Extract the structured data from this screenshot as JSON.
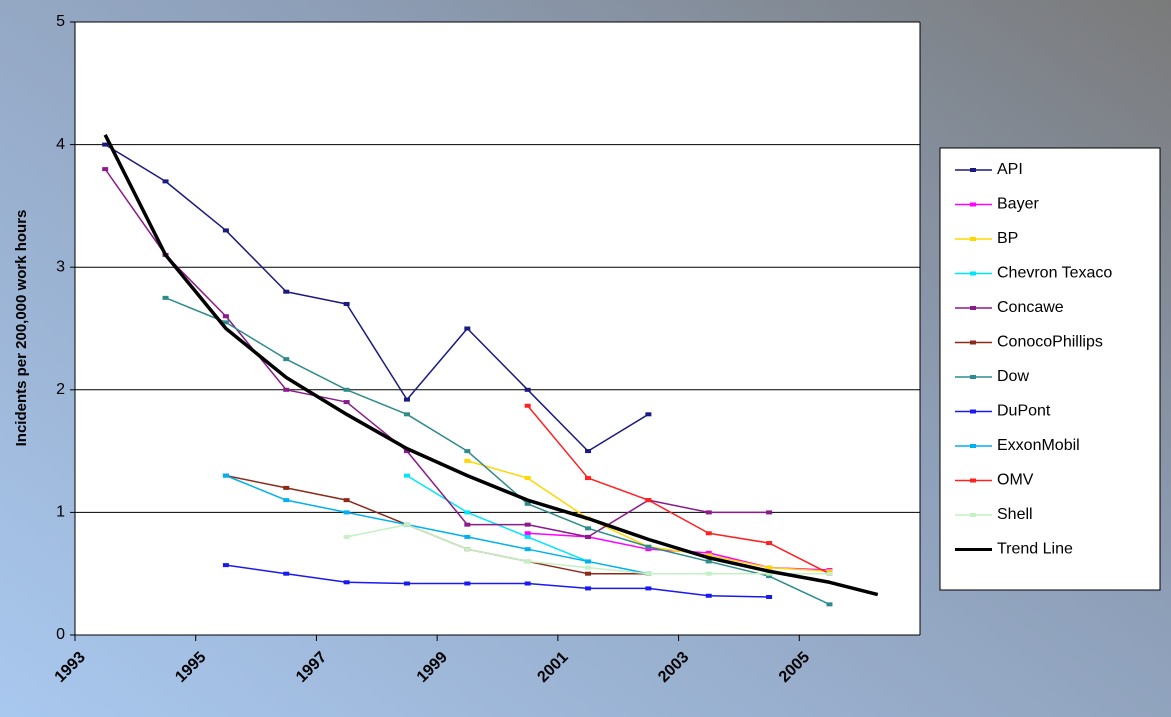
{
  "chart_data": {
    "type": "line",
    "y_label": "Incidents per 200,000 work hours",
    "x": [
      1993.5,
      1994.5,
      1995.5,
      1996.5,
      1997.5,
      1998.5,
      1999.5,
      2000.5,
      2001.5,
      2002.5,
      2003.5,
      2004.5,
      2005.5,
      2006.3
    ],
    "xlim": [
      1993,
      2007
    ],
    "xticks": [
      1993,
      1995,
      1997,
      1999,
      2001,
      2003,
      2005
    ],
    "ylim": [
      0,
      5
    ],
    "yticks": [
      0,
      1,
      2,
      3,
      4,
      5
    ],
    "grid": true,
    "legend": "right",
    "series": [
      {
        "name": "API",
        "color": "#1a1a80",
        "values": [
          4.0,
          3.7,
          3.3,
          2.8,
          2.7,
          1.92,
          2.5,
          2.0,
          1.5,
          1.8,
          null,
          null,
          null,
          null
        ]
      },
      {
        "name": "Bayer",
        "color": "#ff00ff",
        "values": [
          null,
          null,
          null,
          null,
          null,
          null,
          null,
          0.83,
          0.8,
          0.7,
          0.67,
          0.55,
          0.53,
          null
        ]
      },
      {
        "name": "BP",
        "color": "#ffd700",
        "values": [
          null,
          null,
          null,
          null,
          null,
          null,
          1.42,
          1.28,
          0.95,
          0.72,
          0.65,
          0.55,
          0.52,
          null
        ]
      },
      {
        "name": "Chevron Texaco",
        "color": "#00e5ff",
        "values": [
          null,
          null,
          null,
          null,
          null,
          1.3,
          1.0,
          0.8,
          0.6,
          null,
          null,
          null,
          null,
          null
        ]
      },
      {
        "name": "Concawe",
        "color": "#8b1a8b",
        "values": [
          3.8,
          3.1,
          2.6,
          2.0,
          1.9,
          1.5,
          0.9,
          0.9,
          0.8,
          1.1,
          1.0,
          1.0,
          null,
          null
        ]
      },
      {
        "name": "ConocoPhillips",
        "color": "#8b2a1a",
        "values": [
          null,
          null,
          1.3,
          1.2,
          1.1,
          0.9,
          0.7,
          0.6,
          0.5,
          0.5,
          null,
          null,
          null,
          null
        ]
      },
      {
        "name": "Dow",
        "color": "#2e8b8b",
        "values": [
          null,
          2.75,
          2.55,
          2.25,
          2.0,
          1.8,
          1.5,
          1.07,
          0.87,
          0.72,
          0.6,
          0.48,
          0.25,
          null
        ]
      },
      {
        "name": "DuPont",
        "color": "#1a1aee",
        "values": [
          null,
          null,
          0.57,
          0.5,
          0.43,
          0.42,
          0.42,
          0.42,
          0.38,
          0.38,
          0.32,
          0.31,
          null,
          null
        ]
      },
      {
        "name": "ExxonMobil",
        "color": "#00b0f0",
        "values": [
          null,
          null,
          1.3,
          1.1,
          1.0,
          0.9,
          0.8,
          0.7,
          0.6,
          0.5,
          null,
          null,
          null,
          null
        ]
      },
      {
        "name": "OMV",
        "color": "#ff2020",
        "values": [
          null,
          null,
          null,
          null,
          null,
          null,
          null,
          1.87,
          1.28,
          1.1,
          0.83,
          0.75,
          0.5,
          null
        ]
      },
      {
        "name": "Shell",
        "color": "#c4f0c4",
        "values": [
          null,
          null,
          null,
          null,
          0.8,
          0.9,
          0.7,
          0.6,
          0.55,
          0.5,
          0.5,
          0.5,
          0.5,
          null
        ]
      },
      {
        "name": "Trend Line",
        "color": "#000000",
        "values": [
          4.08,
          3.1,
          2.5,
          2.1,
          1.8,
          1.52,
          1.3,
          1.1,
          0.95,
          0.78,
          0.63,
          0.52,
          0.43,
          0.33
        ]
      }
    ]
  }
}
